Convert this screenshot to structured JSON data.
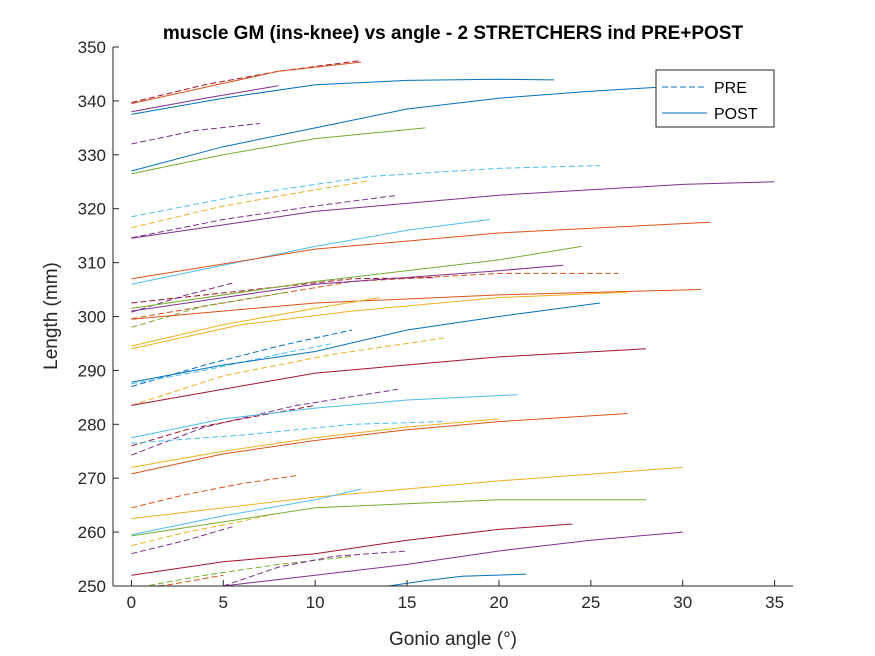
{
  "chart_data": {
    "type": "line",
    "title": "muscle GM (ins-knee) vs angle - 2 STRETCHERS ind PRE+POST",
    "xlabel": "Gonio angle (°)",
    "ylabel": "Length (mm)",
    "xlim": [
      -1,
      36
    ],
    "ylim": [
      250,
      350
    ],
    "xticks": [
      0,
      5,
      10,
      15,
      20,
      25,
      30,
      35
    ],
    "yticks": [
      250,
      260,
      270,
      280,
      290,
      300,
      310,
      320,
      330,
      340,
      350
    ],
    "grid": false,
    "legend": {
      "position": "top-right",
      "entries": [
        {
          "label": "PRE",
          "style": "dashed"
        },
        {
          "label": "POST",
          "style": "solid"
        }
      ]
    },
    "colors": {
      "blue": "#0072BD",
      "orange": "#D95319",
      "yellow": "#EDB120",
      "purple": "#7E2F8E",
      "green": "#77AC30",
      "cyan": "#4DBEEE",
      "red": "#A2142F"
    },
    "series": [
      {
        "group": "PRE",
        "color": "red",
        "x": [
          0,
          4,
          8,
          12.5
        ],
        "y": [
          339.7,
          343,
          345.5,
          347.5
        ]
      },
      {
        "group": "PRE",
        "color": "purple",
        "x": [
          0,
          3.5,
          7
        ],
        "y": [
          332,
          334.5,
          335.8
        ]
      },
      {
        "group": "PRE",
        "color": "cyan",
        "x": [
          0,
          6,
          13,
          20,
          25.5
        ],
        "y": [
          318.5,
          322.5,
          326,
          327.5,
          328
        ]
      },
      {
        "group": "PRE",
        "color": "yellow",
        "x": [
          0,
          5,
          10,
          13
        ],
        "y": [
          316.5,
          320.5,
          323.5,
          325.2
        ]
      },
      {
        "group": "PRE",
        "color": "purple",
        "x": [
          0,
          5,
          10,
          14.5
        ],
        "y": [
          314.6,
          318,
          320.5,
          322.5
        ]
      },
      {
        "group": "PRE",
        "color": "orange",
        "x": [
          0,
          5,
          12,
          20,
          26.5
        ],
        "y": [
          299.6,
          302.5,
          306.5,
          308,
          308
        ]
      },
      {
        "group": "PRE",
        "color": "red",
        "x": [
          0,
          4,
          8,
          12,
          16.5
        ],
        "y": [
          302.5,
          304,
          305.5,
          307,
          307.2
        ]
      },
      {
        "group": "PRE",
        "color": "purple",
        "x": [
          0,
          3,
          5.5
        ],
        "y": [
          300.8,
          304,
          306.2
        ]
      },
      {
        "group": "PRE",
        "color": "green",
        "x": [
          0,
          4,
          8.5
        ],
        "y": [
          298,
          302,
          304.5
        ]
      },
      {
        "group": "PRE",
        "color": "blue",
        "x": [
          0,
          4,
          8,
          12
        ],
        "y": [
          287,
          291,
          294.5,
          297.5
        ]
      },
      {
        "group": "PRE",
        "color": "cyan",
        "x": [
          0,
          4,
          8,
          11
        ],
        "y": [
          287.5,
          290,
          293,
          295
        ]
      },
      {
        "group": "PRE",
        "color": "yellow",
        "x": [
          0,
          5,
          11,
          17
        ],
        "y": [
          283.5,
          289,
          293,
          296
        ]
      },
      {
        "group": "PRE",
        "color": "purple",
        "x": [
          0,
          4,
          9,
          14.5
        ],
        "y": [
          274.3,
          279.5,
          283.5,
          286.5
        ]
      },
      {
        "group": "PRE",
        "color": "red",
        "x": [
          0,
          3,
          6,
          10
        ],
        "y": [
          276,
          279,
          281,
          283.5
        ]
      },
      {
        "group": "PRE",
        "color": "cyan",
        "x": [
          0,
          6,
          12,
          17
        ],
        "y": [
          276.5,
          278,
          280,
          280.5
        ]
      },
      {
        "group": "PRE",
        "color": "orange",
        "x": [
          0,
          3,
          6,
          9
        ],
        "y": [
          264.5,
          267,
          269,
          270.5
        ]
      },
      {
        "group": "PRE",
        "color": "yellow",
        "x": [
          0,
          3,
          6,
          8
        ],
        "y": [
          257.5,
          260,
          262,
          263.5
        ]
      },
      {
        "group": "PRE",
        "color": "purple",
        "x": [
          0,
          3,
          5.5
        ],
        "y": [
          256,
          258.5,
          261
        ]
      },
      {
        "group": "PRE",
        "color": "green",
        "x": [
          0,
          4,
          8,
          12
        ],
        "y": [
          249.5,
          252,
          254,
          255.5
        ]
      },
      {
        "group": "PRE",
        "color": "purple",
        "x": [
          5,
          8,
          11,
          15
        ],
        "y": [
          250,
          253.5,
          255.5,
          256.5
        ]
      },
      {
        "group": "PRE",
        "color": "orange",
        "x": [
          0,
          2,
          5
        ],
        "y": [
          249.5,
          250.2,
          252
        ]
      },
      {
        "group": "POST",
        "color": "orange",
        "x": [
          0,
          4,
          8,
          12.5
        ],
        "y": [
          339.5,
          342.5,
          345.5,
          347.2
        ]
      },
      {
        "group": "POST",
        "color": "blue",
        "x": [
          0,
          5,
          10,
          15,
          20,
          23
        ],
        "y": [
          337.5,
          340.5,
          343,
          343.8,
          344,
          343.9
        ]
      },
      {
        "group": "POST",
        "color": "purple",
        "x": [
          0,
          4,
          8
        ],
        "y": [
          338,
          340.5,
          342.8
        ]
      },
      {
        "group": "POST",
        "color": "blue",
        "x": [
          0,
          5,
          10,
          15,
          20,
          25,
          30,
          35
        ],
        "y": [
          327,
          331.5,
          335,
          338.5,
          340.5,
          341.8,
          342.8,
          343.5
        ]
      },
      {
        "group": "POST",
        "color": "green",
        "x": [
          0,
          5,
          10,
          16
        ],
        "y": [
          326.5,
          330,
          333,
          335
        ]
      },
      {
        "group": "POST",
        "color": "purple",
        "x": [
          0,
          10,
          20,
          30,
          35
        ],
        "y": [
          314.5,
          319.5,
          322.5,
          324.5,
          325
        ]
      },
      {
        "group": "POST",
        "color": "cyan",
        "x": [
          0,
          5,
          10,
          15,
          19.5
        ],
        "y": [
          306,
          309.5,
          313,
          316,
          318
        ]
      },
      {
        "group": "POST",
        "color": "orange",
        "x": [
          0,
          10,
          20,
          31.5
        ],
        "y": [
          307,
          312.5,
          315.5,
          317.5
        ]
      },
      {
        "group": "POST",
        "color": "green",
        "x": [
          0,
          10,
          20,
          24.5
        ],
        "y": [
          301.5,
          306.5,
          310.5,
          313
        ]
      },
      {
        "group": "POST",
        "color": "purple",
        "x": [
          0,
          10,
          20,
          23.5
        ],
        "y": [
          301,
          306,
          308.5,
          309.5
        ]
      },
      {
        "group": "POST",
        "color": "orange",
        "x": [
          0,
          10,
          20,
          31
        ],
        "y": [
          299.5,
          302.5,
          304,
          305
        ]
      },
      {
        "group": "POST",
        "color": "yellow",
        "x": [
          0,
          6,
          12,
          20,
          27
        ],
        "y": [
          294,
          298.5,
          301,
          303.5,
          304.5
        ]
      },
      {
        "group": "POST",
        "color": "yellow",
        "x": [
          0,
          5,
          10,
          13.5
        ],
        "y": [
          294.5,
          298.5,
          301.5,
          303.5
        ]
      },
      {
        "group": "POST",
        "color": "blue",
        "x": [
          0,
          5,
          10,
          15,
          20,
          25.5
        ],
        "y": [
          287.8,
          291,
          293.5,
          297.5,
          300,
          302.5
        ]
      },
      {
        "group": "POST",
        "color": "red",
        "x": [
          0,
          10,
          20,
          28
        ],
        "y": [
          283.5,
          289.5,
          292.5,
          294
        ]
      },
      {
        "group": "POST",
        "color": "cyan",
        "x": [
          0,
          5,
          10,
          15,
          21
        ],
        "y": [
          277.5,
          281,
          283,
          284.5,
          285.5
        ]
      },
      {
        "group": "POST",
        "color": "orange",
        "x": [
          0,
          5,
          10,
          15,
          20,
          27
        ],
        "y": [
          270.8,
          274.5,
          277,
          279,
          280.5,
          282
        ]
      },
      {
        "group": "POST",
        "color": "yellow",
        "x": [
          0,
          5,
          10,
          15,
          20
        ],
        "y": [
          272,
          275,
          277.5,
          279.5,
          281
        ]
      },
      {
        "group": "POST",
        "color": "yellow",
        "x": [
          0,
          10,
          20,
          30
        ],
        "y": [
          262.5,
          266.5,
          269.5,
          272
        ]
      },
      {
        "group": "POST",
        "color": "cyan",
        "x": [
          0,
          5,
          10,
          12.5
        ],
        "y": [
          259.5,
          263,
          266,
          268
        ]
      },
      {
        "group": "POST",
        "color": "green",
        "x": [
          0,
          10,
          20,
          28
        ],
        "y": [
          259.3,
          264.5,
          266,
          266
        ]
      },
      {
        "group": "POST",
        "color": "red",
        "x": [
          0,
          5,
          10,
          15,
          20,
          24
        ],
        "y": [
          252,
          254.5,
          256,
          258.5,
          260.5,
          261.5
        ]
      },
      {
        "group": "POST",
        "color": "purple",
        "x": [
          5,
          10,
          15,
          20,
          25,
          30
        ],
        "y": [
          250,
          252,
          254,
          256.5,
          258.5,
          260
        ]
      },
      {
        "group": "POST",
        "color": "blue",
        "x": [
          14,
          16,
          18,
          21.5
        ],
        "y": [
          250,
          251,
          251.8,
          252.2
        ]
      }
    ]
  }
}
